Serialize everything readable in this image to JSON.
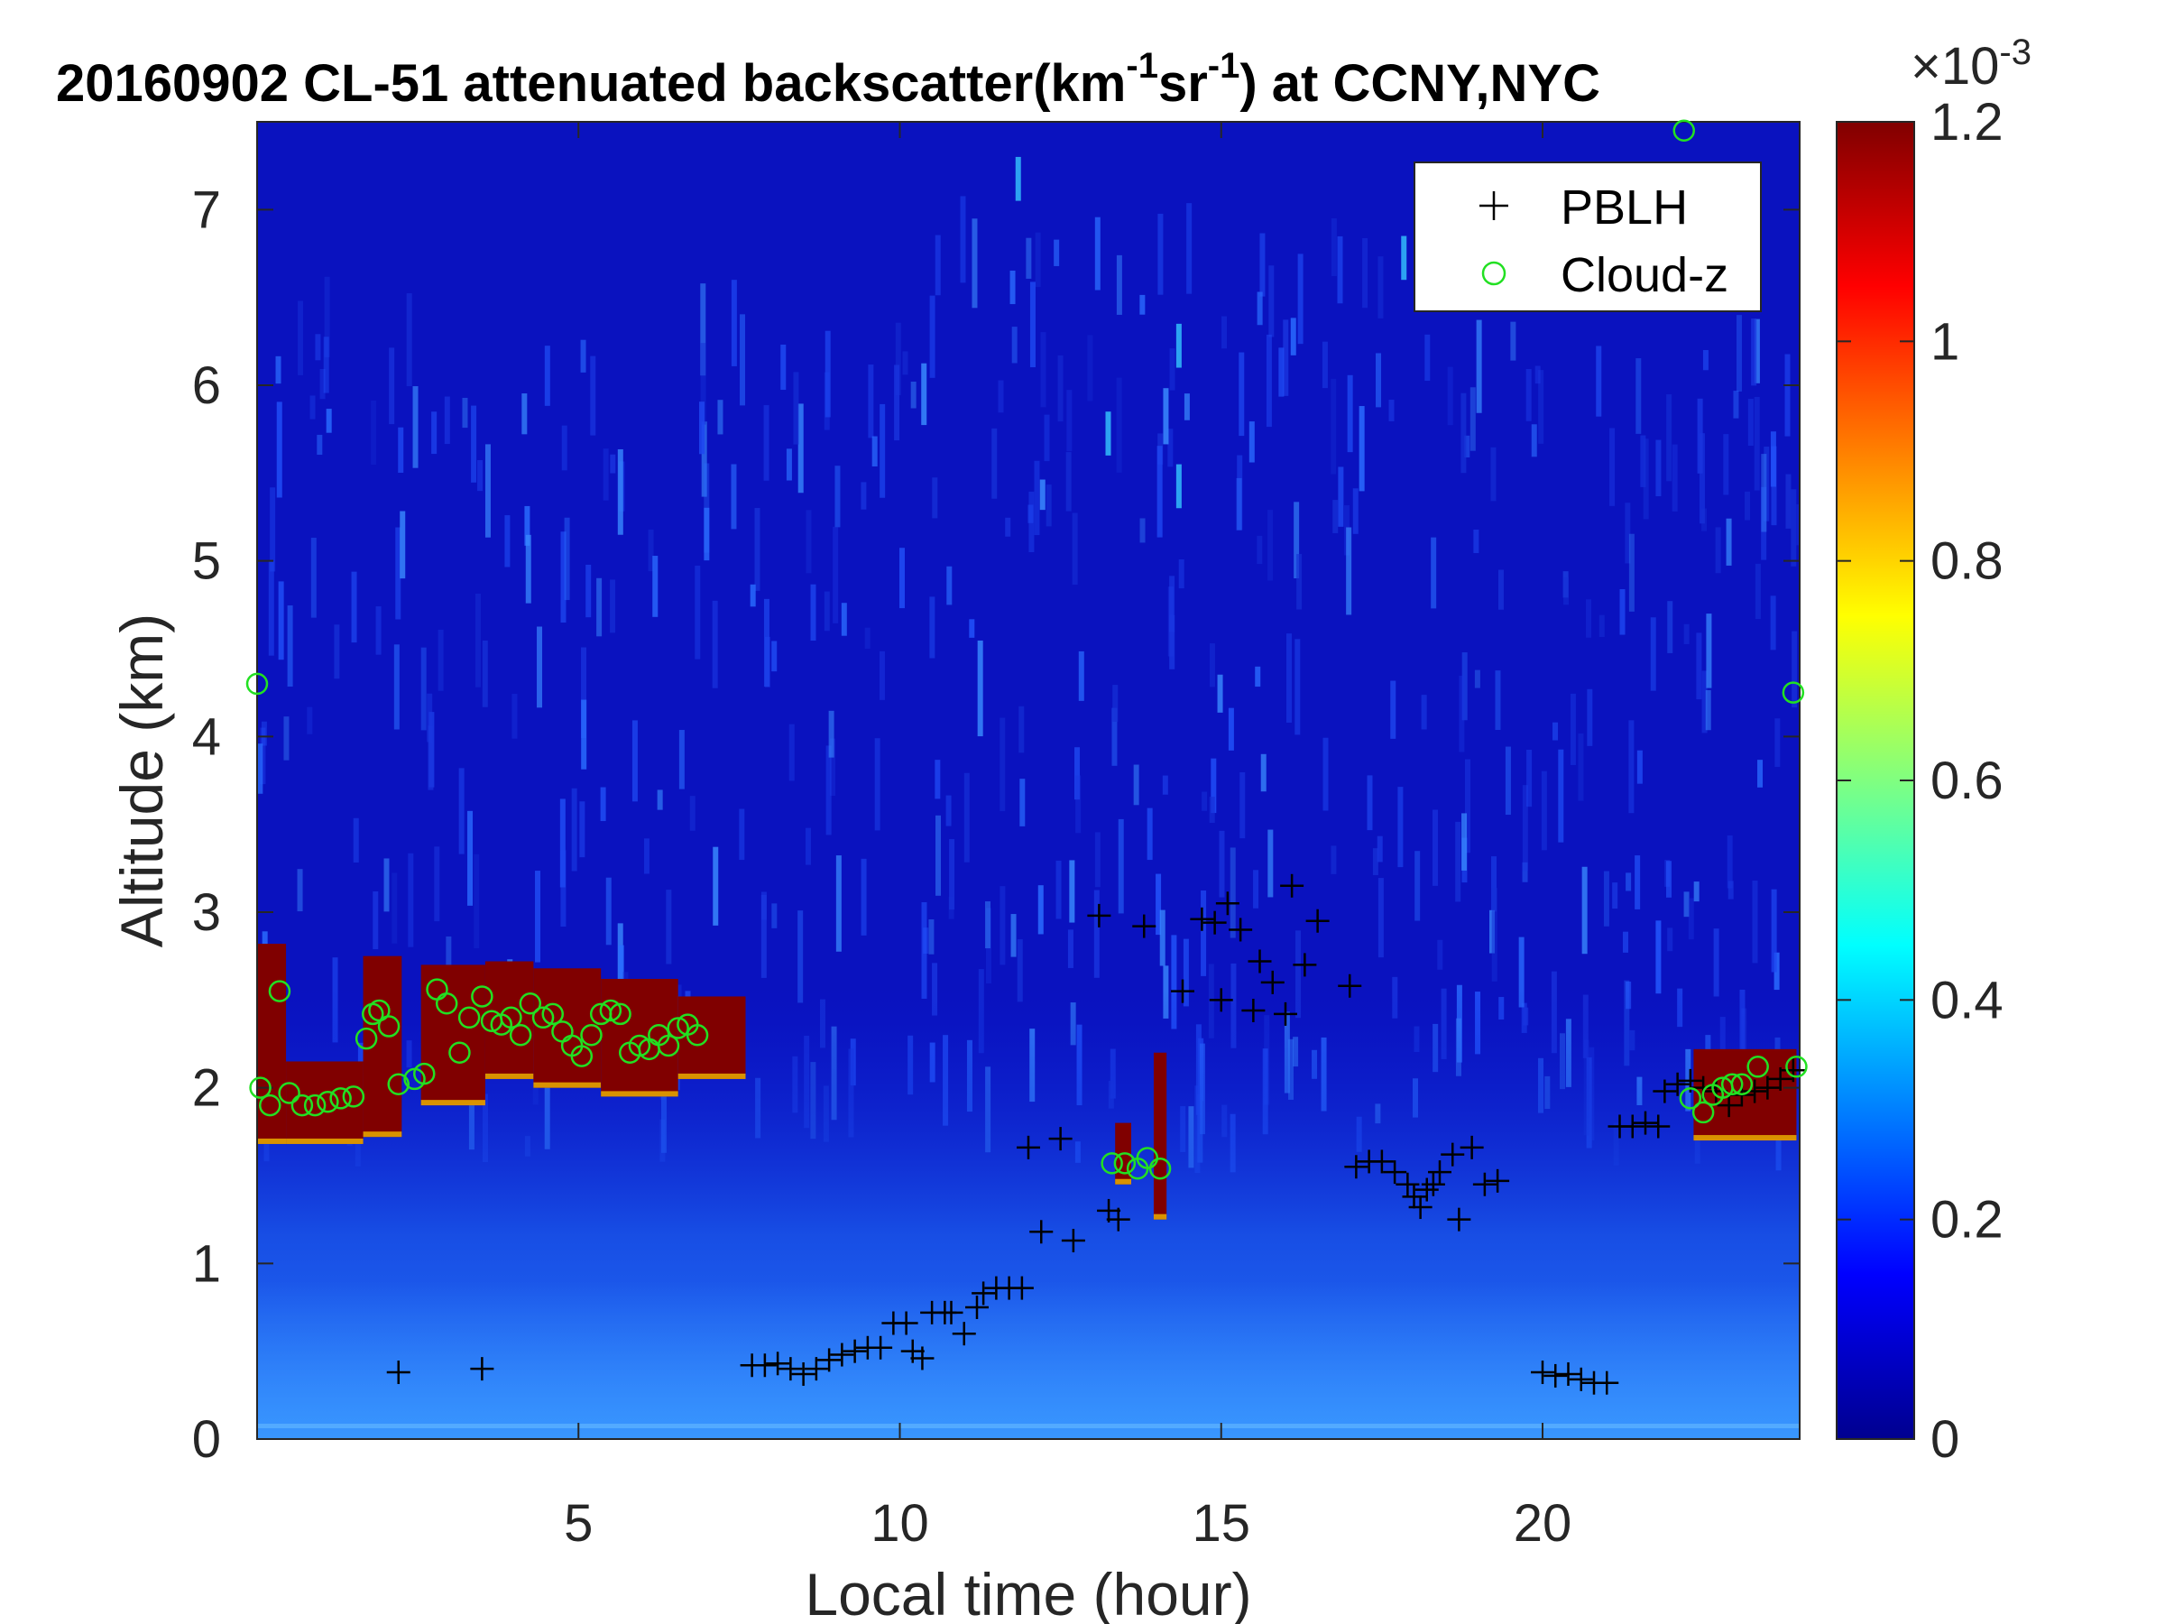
{
  "chart_data": {
    "type": "heatmap",
    "title": "20160902  CL-51 attenuated backscatter(km",
    "title_sup1": "-1",
    "title_mid": "sr",
    "title_sup2": "-1",
    "title_end": ") at CCNY,NYC",
    "xlabel": "Local time (hour)",
    "ylabel": "Altitude (km)",
    "xlim": [
      0,
      24
    ],
    "ylim": [
      0,
      7.5
    ],
    "xticks": [
      "5",
      "10",
      "15",
      "20"
    ],
    "xtick_values": [
      5,
      10,
      15,
      20
    ],
    "yticks": [
      "0",
      "1",
      "2",
      "3",
      "4",
      "5",
      "6",
      "7"
    ],
    "ytick_values": [
      0,
      1,
      2,
      3,
      4,
      5,
      6,
      7
    ],
    "colorbar": {
      "range": [
        0,
        0.0012
      ],
      "exponent_base": "×10",
      "exponent_power": "-3",
      "ticks": [
        "0",
        "0.2",
        "0.4",
        "0.6",
        "0.8",
        "1",
        "1.2"
      ],
      "tick_values": [
        0,
        0.2,
        0.4,
        0.6,
        0.8,
        1.0,
        1.2
      ],
      "colormap": "jet"
    },
    "legend": {
      "placement": "top-right",
      "entries": [
        {
          "label": "PBLH",
          "marker": "+",
          "color": "#000000"
        },
        {
          "label": "Cloud-z",
          "marker": "o",
          "color": "#22e022"
        }
      ]
    },
    "series": [
      {
        "name": "PBLH",
        "points": [
          [
            2.2,
            0.38
          ],
          [
            3.5,
            0.4
          ],
          [
            7.7,
            0.42
          ],
          [
            7.9,
            0.42
          ],
          [
            8.1,
            0.43
          ],
          [
            8.3,
            0.4
          ],
          [
            8.5,
            0.37
          ],
          [
            8.7,
            0.4
          ],
          [
            8.9,
            0.45
          ],
          [
            9.1,
            0.48
          ],
          [
            9.3,
            0.5
          ],
          [
            9.5,
            0.52
          ],
          [
            9.7,
            0.52
          ],
          [
            9.9,
            0.66
          ],
          [
            10.1,
            0.66
          ],
          [
            10.2,
            0.5
          ],
          [
            10.35,
            0.46
          ],
          [
            10.5,
            0.72
          ],
          [
            10.7,
            0.72
          ],
          [
            10.8,
            0.72
          ],
          [
            11.0,
            0.6
          ],
          [
            11.2,
            0.75
          ],
          [
            11.3,
            0.83
          ],
          [
            11.5,
            0.86
          ],
          [
            11.7,
            0.86
          ],
          [
            11.9,
            0.86
          ],
          [
            12.0,
            1.66
          ],
          [
            12.2,
            1.18
          ],
          [
            12.5,
            1.71
          ],
          [
            12.7,
            1.13
          ],
          [
            13.1,
            2.98
          ],
          [
            13.25,
            1.3
          ],
          [
            13.4,
            1.25
          ],
          [
            13.8,
            2.92
          ],
          [
            14.4,
            2.55
          ],
          [
            14.7,
            2.96
          ],
          [
            14.9,
            2.94
          ],
          [
            15.0,
            2.5
          ],
          [
            15.1,
            3.05
          ],
          [
            15.3,
            2.9
          ],
          [
            15.5,
            2.44
          ],
          [
            15.6,
            2.72
          ],
          [
            15.8,
            2.6
          ],
          [
            16.0,
            2.42
          ],
          [
            16.1,
            3.15
          ],
          [
            16.3,
            2.7
          ],
          [
            16.5,
            2.95
          ],
          [
            17.0,
            2.58
          ],
          [
            17.1,
            1.55
          ],
          [
            17.3,
            1.58
          ],
          [
            17.5,
            1.58
          ],
          [
            17.7,
            1.52
          ],
          [
            17.9,
            1.45
          ],
          [
            18.0,
            1.38
          ],
          [
            18.1,
            1.32
          ],
          [
            18.2,
            1.42
          ],
          [
            18.3,
            1.45
          ],
          [
            18.4,
            1.52
          ],
          [
            18.6,
            1.62
          ],
          [
            18.7,
            1.25
          ],
          [
            18.9,
            1.66
          ],
          [
            19.1,
            1.45
          ],
          [
            19.3,
            1.47
          ],
          [
            20.0,
            0.38
          ],
          [
            20.2,
            0.36
          ],
          [
            20.4,
            0.37
          ],
          [
            20.6,
            0.34
          ],
          [
            20.8,
            0.32
          ],
          [
            21.0,
            0.32
          ],
          [
            21.2,
            1.78
          ],
          [
            21.4,
            1.78
          ],
          [
            21.6,
            1.8
          ],
          [
            21.8,
            1.78
          ],
          [
            21.9,
            1.98
          ],
          [
            22.1,
            2.02
          ],
          [
            22.3,
            2.04
          ],
          [
            22.5,
            2.0
          ],
          [
            22.7,
            1.98
          ],
          [
            22.9,
            1.9
          ],
          [
            23.1,
            1.96
          ],
          [
            23.3,
            1.98
          ],
          [
            23.5,
            2.0
          ],
          [
            23.7,
            2.05
          ],
          [
            23.9,
            2.1
          ]
        ]
      },
      {
        "name": "Cloud-z",
        "points": [
          [
            0.0,
            4.3
          ],
          [
            0.05,
            2.0
          ],
          [
            0.2,
            1.9
          ],
          [
            0.35,
            2.55
          ],
          [
            0.5,
            1.97
          ],
          [
            0.7,
            1.9
          ],
          [
            0.9,
            1.9
          ],
          [
            1.1,
            1.92
          ],
          [
            1.3,
            1.94
          ],
          [
            1.5,
            1.95
          ],
          [
            1.7,
            2.28
          ],
          [
            1.8,
            2.42
          ],
          [
            1.9,
            2.44
          ],
          [
            2.05,
            2.35
          ],
          [
            2.2,
            2.02
          ],
          [
            2.45,
            2.05
          ],
          [
            2.6,
            2.08
          ],
          [
            2.8,
            2.56
          ],
          [
            2.95,
            2.48
          ],
          [
            3.15,
            2.2
          ],
          [
            3.3,
            2.4
          ],
          [
            3.5,
            2.52
          ],
          [
            3.65,
            2.38
          ],
          [
            3.8,
            2.36
          ],
          [
            3.95,
            2.4
          ],
          [
            4.1,
            2.3
          ],
          [
            4.25,
            2.48
          ],
          [
            4.45,
            2.4
          ],
          [
            4.6,
            2.42
          ],
          [
            4.75,
            2.32
          ],
          [
            4.9,
            2.24
          ],
          [
            5.05,
            2.18
          ],
          [
            5.2,
            2.3
          ],
          [
            5.35,
            2.42
          ],
          [
            5.5,
            2.44
          ],
          [
            5.65,
            2.42
          ],
          [
            5.8,
            2.2
          ],
          [
            5.95,
            2.24
          ],
          [
            6.1,
            2.22
          ],
          [
            6.25,
            2.3
          ],
          [
            6.4,
            2.24
          ],
          [
            6.55,
            2.34
          ],
          [
            6.7,
            2.36
          ],
          [
            6.85,
            2.3
          ],
          [
            13.3,
            1.57
          ],
          [
            13.5,
            1.57
          ],
          [
            13.7,
            1.54
          ],
          [
            13.85,
            1.6
          ],
          [
            14.05,
            1.54
          ],
          [
            22.2,
            7.45
          ],
          [
            22.3,
            1.94
          ],
          [
            22.5,
            1.86
          ],
          [
            22.65,
            1.96
          ],
          [
            22.8,
            2.0
          ],
          [
            22.95,
            2.02
          ],
          [
            23.1,
            2.02
          ],
          [
            23.35,
            2.12
          ],
          [
            23.9,
            4.25
          ],
          [
            23.95,
            2.12
          ]
        ]
      }
    ],
    "cloud_layers": [
      {
        "t0": 0.0,
        "t1": 0.45,
        "bottom": 1.68,
        "top": 2.82
      },
      {
        "t0": 0.45,
        "t1": 1.65,
        "bottom": 1.68,
        "top": 2.15
      },
      {
        "t0": 1.65,
        "t1": 2.25,
        "bottom": 1.72,
        "top": 2.75
      },
      {
        "t0": 2.55,
        "t1": 3.55,
        "bottom": 1.9,
        "top": 2.7
      },
      {
        "t0": 3.55,
        "t1": 4.3,
        "bottom": 2.05,
        "top": 2.72
      },
      {
        "t0": 4.3,
        "t1": 5.35,
        "bottom": 2.0,
        "top": 2.68
      },
      {
        "t0": 5.35,
        "t1": 6.55,
        "bottom": 1.95,
        "top": 2.62
      },
      {
        "t0": 6.55,
        "t1": 7.6,
        "bottom": 2.05,
        "top": 2.52
      },
      {
        "t0": 13.35,
        "t1": 13.6,
        "bottom": 1.45,
        "top": 1.8
      },
      {
        "t0": 13.95,
        "t1": 14.15,
        "bottom": 1.25,
        "top": 2.2
      },
      {
        "t0": 22.35,
        "t1": 23.95,
        "bottom": 1.7,
        "top": 2.22
      }
    ]
  }
}
